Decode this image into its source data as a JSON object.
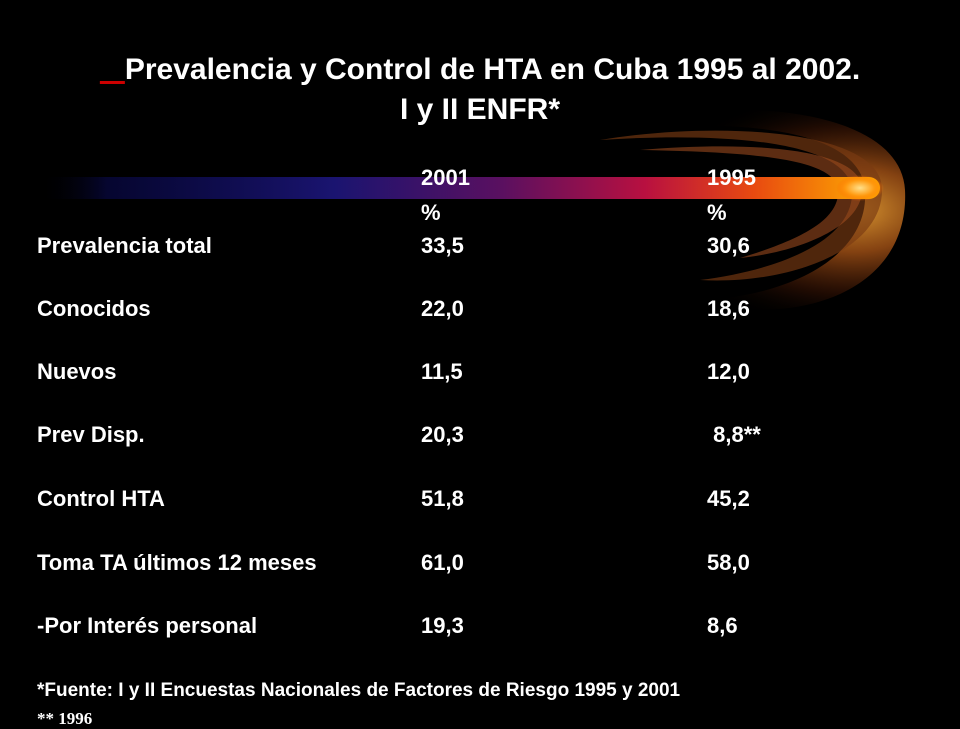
{
  "slide": {
    "background_color": "#000000",
    "accent_color": "#cc0000",
    "title": {
      "underline_prefix": "   ",
      "line1": "Prevalencia y Control de HTA en Cuba 1995 al 2002.",
      "line2": "I y II ENFR*"
    },
    "table": {
      "headers": {
        "col_2001_year": "2001",
        "col_2001_unit": "%",
        "col_1995_year": "1995",
        "col_1995_unit": "%"
      },
      "rows": [
        {
          "label": "Prevalencia total",
          "v2001": "33,5",
          "v1995": "30,6"
        },
        {
          "label": "Conocidos",
          "v2001": "22,0",
          "v1995": "18,6"
        },
        {
          "label": "Nuevos",
          "v2001": "11,5",
          "v1995": "12,0"
        },
        {
          "label": "Prev Disp.",
          "v2001": "20,3",
          "v1995": " 8,8**"
        },
        {
          "label": "Control HTA",
          "v2001": "51,8",
          "v1995": "45,2"
        },
        {
          "label": "Toma TA últimos 12 meses",
          "v2001": "61,0",
          "v1995": "58,0"
        },
        {
          "label": "-Por Interés personal",
          "v2001": "19,3",
          "v1995": "8,6"
        }
      ]
    },
    "footnotes": {
      "source": "*Fuente: I y II Encuestas Nacionales de Factores de Riesgo 1995 y 2001",
      "note2": "** 1996"
    }
  }
}
